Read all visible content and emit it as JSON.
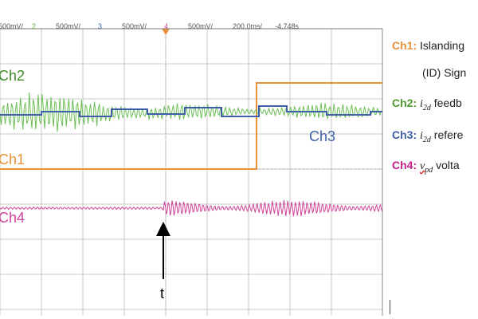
{
  "header": {
    "items": [
      {
        "text": "500mV/",
        "color": "#555555"
      },
      {
        "text": "2",
        "color": "#5fae3f"
      },
      {
        "text": "500mV/",
        "color": "#555555"
      },
      {
        "text": "3",
        "color": "#3f5fa8"
      },
      {
        "text": "500mV/",
        "color": "#555555"
      },
      {
        "text": "4",
        "color": "#d0459a"
      },
      {
        "text": "500mV/",
        "color": "#555555"
      },
      {
        "text": "200.0ms/",
        "color": "#555555"
      },
      {
        "text": "-4.748s",
        "color": "#555555"
      }
    ]
  },
  "chart_data": {
    "type": "line",
    "grid": true,
    "colors": {
      "ch1": "#e8913a",
      "ch2": "#6cbf55",
      "ch3": "#3f5fa8",
      "ch4": "#d0459a"
    },
    "series": [
      {
        "name": "Ch1",
        "label": "Ch1",
        "description": "Islanding Detection (ID) Signal, steps high at trigger t"
      },
      {
        "name": "Ch2",
        "label": "Ch2",
        "description": "i2d feedback (oscillating)"
      },
      {
        "name": "Ch3",
        "label": "Ch3",
        "description": "i2d reference (stepped)"
      },
      {
        "name": "Ch4",
        "label": "Ch4",
        "description": "vpd voltage"
      }
    ],
    "annotations": {
      "trigger_label": "t"
    }
  },
  "legend": {
    "ch1_key": "Ch1:",
    "ch1_text": "Islanding",
    "ch1_cont": "(ID) Sign",
    "ch2_key": "Ch2:",
    "ch2_sym": "i",
    "ch2_sub": "2d",
    "ch2_text": "feedb",
    "ch3_key": "Ch3:",
    "ch3_sym": "i",
    "ch3_sub": "2d",
    "ch3_text": "refere",
    "ch4_key": "Ch4:",
    "ch4_sym": "v",
    "ch4_sub": "pd",
    "ch4_text": "volta"
  }
}
